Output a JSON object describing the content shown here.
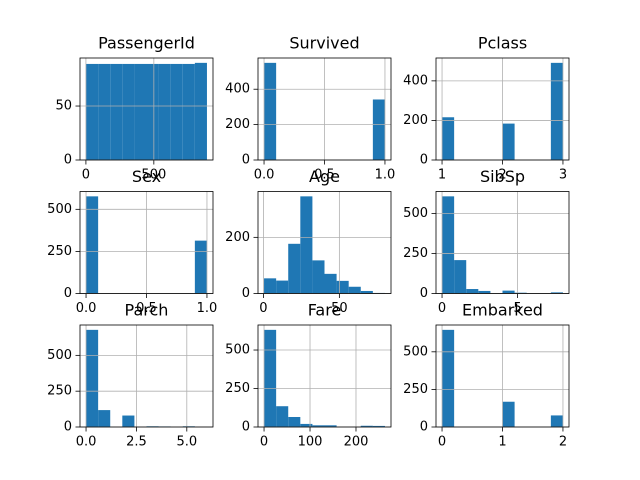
{
  "chart_data": [
    {
      "type": "histogram",
      "title": "PassengerId",
      "color": "#1f77b4",
      "grid": true,
      "bins": [
        1,
        90,
        179,
        268,
        357,
        446,
        535,
        624,
        713,
        802,
        891
      ],
      "values": [
        89,
        89,
        89,
        89,
        89,
        89,
        89,
        89,
        89,
        90
      ],
      "xlim": [
        -43.5,
        935.5
      ],
      "xticks": [
        0,
        500
      ],
      "ylim": [
        0,
        94.5
      ],
      "yticks": [
        0,
        50
      ]
    },
    {
      "type": "histogram",
      "title": "Survived",
      "color": "#1f77b4",
      "grid": true,
      "bins": [
        0,
        0.1,
        0.2,
        0.3,
        0.4,
        0.5,
        0.6,
        0.7,
        0.8,
        0.9,
        1
      ],
      "values": [
        549,
        0,
        0,
        0,
        0,
        0,
        0,
        0,
        0,
        342
      ],
      "xlim": [
        -0.05,
        1.05
      ],
      "xticks": [
        {
          "value": 0,
          "label": "0.0"
        },
        {
          "value": 0.5,
          "label": "0.5"
        },
        {
          "value": 1,
          "label": "1.0"
        }
      ],
      "ylim": [
        0,
        576.45
      ],
      "yticks": [
        0,
        200,
        400
      ]
    },
    {
      "type": "histogram",
      "title": "Pclass",
      "color": "#1f77b4",
      "grid": true,
      "bins": [
        1,
        1.2,
        1.4,
        1.6,
        1.8,
        2,
        2.2,
        2.4,
        2.6,
        2.8,
        3
      ],
      "values": [
        216,
        0,
        0,
        0,
        0,
        184,
        0,
        0,
        0,
        491
      ],
      "xlim": [
        0.9,
        3.1
      ],
      "xticks": [
        1,
        2,
        3
      ],
      "ylim": [
        0,
        515.55
      ],
      "yticks": [
        0,
        200,
        400
      ]
    },
    {
      "type": "histogram",
      "title": "Sex",
      "color": "#1f77b4",
      "grid": true,
      "bins": [
        0,
        0.1,
        0.2,
        0.3,
        0.4,
        0.5,
        0.6,
        0.7,
        0.8,
        0.9,
        1
      ],
      "values": [
        577,
        0,
        0,
        0,
        0,
        0,
        0,
        0,
        0,
        314
      ],
      "xlim": [
        -0.05,
        1.05
      ],
      "xticks": [
        {
          "value": 0,
          "label": "0.0"
        },
        {
          "value": 0.5,
          "label": "0.5"
        },
        {
          "value": 1,
          "label": "1.0"
        }
      ],
      "ylim": [
        0,
        605.85
      ],
      "yticks": [
        0,
        250,
        500
      ]
    },
    {
      "type": "histogram",
      "title": "Age",
      "color": "#1f77b4",
      "grid": true,
      "bins": [
        0.42,
        8.378,
        16.336,
        24.294,
        32.252,
        40.21,
        48.168,
        56.126,
        64.084,
        72.042,
        80
      ],
      "values": [
        54,
        46,
        177,
        346,
        118,
        70,
        45,
        24,
        9,
        2
      ],
      "xlim": [
        -3.559,
        83.979
      ],
      "xticks": [
        0,
        50
      ],
      "ylim": [
        0,
        363.3
      ],
      "yticks": [
        0,
        200
      ]
    },
    {
      "type": "histogram",
      "title": "SibSp",
      "color": "#1f77b4",
      "grid": true,
      "bins": [
        0,
        0.8,
        1.6,
        2.4,
        3.2,
        4,
        4.8,
        5.6,
        6.4,
        7.2,
        8
      ],
      "values": [
        608,
        209,
        28,
        16,
        0,
        18,
        5,
        0,
        0,
        7
      ],
      "xlim": [
        -0.4,
        8.4
      ],
      "xticks": [
        0,
        5
      ],
      "ylim": [
        0,
        638.4
      ],
      "yticks": [
        0,
        250,
        500
      ]
    },
    {
      "type": "histogram",
      "title": "Parch",
      "color": "#1f77b4",
      "grid": true,
      "bins": [
        0,
        0.6,
        1.2,
        1.8,
        2.4,
        3,
        3.6,
        4.2,
        4.8,
        5.4,
        6
      ],
      "values": [
        678,
        118,
        0,
        80,
        0,
        5,
        4,
        0,
        5,
        1
      ],
      "xlim": [
        -0.3,
        6.3
      ],
      "xticks": [
        {
          "value": 0,
          "label": "0.0"
        },
        {
          "value": 2.5,
          "label": "2.5"
        },
        {
          "value": 5,
          "label": "5.0"
        }
      ],
      "ylim": [
        0,
        711.9
      ],
      "yticks": [
        0,
        250,
        500
      ]
    },
    {
      "type": "histogram",
      "title": "Fare",
      "color": "#1f77b4",
      "grid": true,
      "bins": [
        0,
        26.3,
        52.6,
        78.9,
        105.2,
        131.5,
        157.8,
        184.1,
        210.4,
        236.7,
        263
      ],
      "values": [
        631,
        135,
        65,
        20,
        11,
        11,
        0,
        0,
        8,
        7
      ],
      "xlim": [
        -13.15,
        276.15
      ],
      "xticks": [
        0,
        100,
        200
      ],
      "ylim": [
        0,
        662.55
      ],
      "yticks": [
        0,
        250,
        500
      ]
    },
    {
      "type": "histogram",
      "title": "Embarked",
      "color": "#1f77b4",
      "grid": true,
      "bins": [
        0,
        0.2,
        0.4,
        0.6,
        0.8,
        1,
        1.2,
        1.4,
        1.6,
        1.8,
        2
      ],
      "values": [
        646,
        0,
        0,
        0,
        0,
        168,
        0,
        0,
        0,
        77
      ],
      "xlim": [
        -0.1,
        2.1
      ],
      "xticks": [
        0,
        1,
        2
      ],
      "ylim": [
        0,
        678.3
      ],
      "yticks": [
        0,
        250,
        500
      ]
    }
  ]
}
